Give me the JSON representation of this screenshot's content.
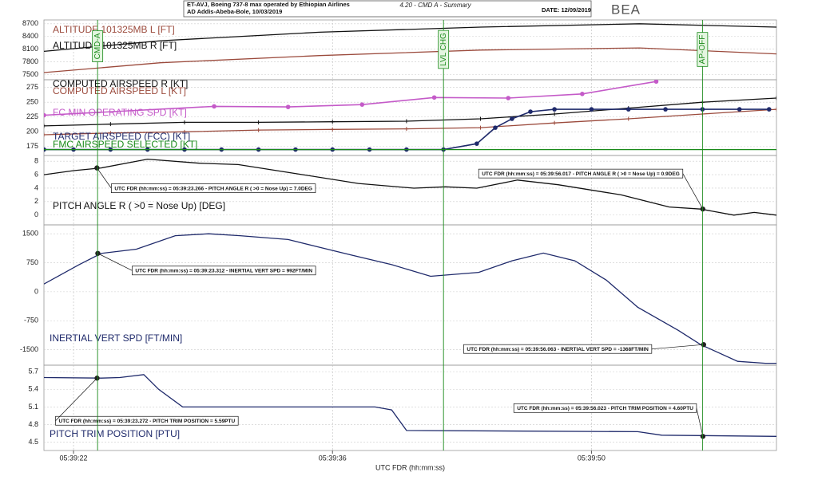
{
  "header": {
    "line1": "ET-AVJ, Boeing 737-8 max operated by Ethiopian Airlines",
    "line2": "AD Addis-Abeba-Bole, 10/03/2019",
    "title": "4.20 - CMD A - Summary",
    "date": "DATE: 12/09/2019",
    "logo": "BEA"
  },
  "events": [
    {
      "x": 23.3,
      "label": "CMD-A",
      "color": "#1a8a1a"
    },
    {
      "x": 42.0,
      "label": "LVL CHG",
      "color": "#1a8a1a"
    },
    {
      "x": 56.0,
      "label": "AP-OFF",
      "color": "#1a8a1a"
    }
  ],
  "chart_data": [
    {
      "type": "line",
      "xlim": [
        20.4,
        60
      ],
      "xticks": [
        {
          "value": 22,
          "label": "05:39:22"
        },
        {
          "value": 36,
          "label": "05:39:36"
        },
        {
          "value": 50,
          "label": "05:39:50"
        }
      ],
      "ylim": [
        7380,
        8790
      ],
      "yticks": [
        7500,
        7800,
        8100,
        8400,
        8700
      ],
      "grid": true,
      "series": [
        {
          "name": "ALTITUDE 101325MB L [FT]",
          "color": "#9b4a3c",
          "x": [
            20.4,
            26.7,
            35.3,
            44.0,
            52.6,
            60.0
          ],
          "values": [
            7550,
            7780,
            7950,
            8080,
            8130,
            7990
          ]
        },
        {
          "name": "ALTITUDE 101325MB R [FT]",
          "color": "#111111",
          "x": [
            20.4,
            26.7,
            35.3,
            44.0,
            52.6,
            60.0
          ],
          "values": [
            8050,
            8300,
            8500,
            8620,
            8700,
            8620
          ]
        }
      ]
    },
    {
      "type": "line",
      "xlim": [
        20.4,
        60
      ],
      "xticks": [
        {
          "value": 22,
          "label": "05:39:22"
        },
        {
          "value": 36,
          "label": "05:39:36"
        },
        {
          "value": 50,
          "label": "05:39:50"
        }
      ],
      "ylim": [
        160,
        288
      ],
      "yticks": [
        175,
        200,
        225,
        250,
        275
      ],
      "grid": true,
      "series": [
        {
          "name": "COMPUTED AIRSPEED R [KT]",
          "color": "#111111",
          "marker": "plus",
          "x": [
            20.4,
            24,
            28,
            32,
            36,
            40,
            44,
            48,
            52,
            56,
            60
          ],
          "values": [
            210,
            213,
            216,
            216,
            217,
            218,
            222,
            230,
            240,
            250,
            257
          ]
        },
        {
          "name": "COMPUTED AIRSPEED L [KT]",
          "color": "#9b4a3c",
          "marker": "plus",
          "x": [
            20.4,
            24,
            28,
            32,
            36,
            40,
            44,
            48,
            52,
            56,
            60
          ],
          "values": [
            195,
            198,
            200,
            203,
            204,
            205,
            207,
            215,
            222,
            230,
            238
          ]
        },
        {
          "name": "FC MIN OPERATING SPD [KT]",
          "color": "#c45ac8",
          "marker": "dot",
          "x": [
            20.4,
            29.6,
            33.6,
            37.6,
            41.5,
            45.5,
            49.5,
            53.5
          ],
          "values": [
            228,
            243,
            242,
            246,
            258,
            257,
            264,
            285
          ]
        },
        {
          "name": "TARGET AIRSPEED (FCC) [KT]",
          "color": "#1f2a6b",
          "marker": "dot",
          "x": [
            20.4,
            22,
            24,
            26,
            28,
            30,
            32,
            34,
            36,
            38,
            40,
            42,
            43.8,
            44.8,
            45.7,
            46.7,
            48,
            50,
            52,
            54,
            56,
            58,
            59.6
          ],
          "values": [
            170,
            170,
            170,
            170,
            170,
            170,
            170,
            170,
            170,
            170,
            170,
            170,
            180,
            207,
            222,
            234,
            238,
            238,
            238,
            238,
            238,
            238,
            238
          ]
        },
        {
          "name": "FMC AIRSPEED SELECTED [KT]",
          "color": "#1a8a1a",
          "x": [
            20.4,
            60
          ],
          "values": [
            170,
            170
          ]
        }
      ]
    },
    {
      "type": "line",
      "xlim": [
        20.4,
        60
      ],
      "xticks": [
        {
          "value": 22,
          "label": "05:39:22"
        },
        {
          "value": 36,
          "label": "05:39:36"
        },
        {
          "value": 50,
          "label": "05:39:50"
        }
      ],
      "ylim": [
        -1.45,
        8.85
      ],
      "yticks": [
        0,
        2,
        4,
        6,
        8
      ],
      "grid": true,
      "series": [
        {
          "name": "PITCH ANGLE R ( >0 = Nose Up) [DEG]",
          "color": "#111111",
          "x": [
            20.4,
            22.0,
            23.5,
            26.0,
            28.8,
            30.9,
            34.4,
            37.4,
            40.4,
            42.1,
            43.8,
            46.0,
            48.2,
            51.6,
            54.2,
            55.9,
            57.7,
            58.8,
            60.0
          ],
          "values": [
            6.0,
            6.6,
            7.0,
            8.3,
            7.7,
            7.5,
            6.0,
            4.7,
            4.0,
            4.2,
            4.0,
            5.2,
            4.5,
            3.0,
            1.2,
            0.9,
            0.0,
            0.4,
            0.0
          ]
        }
      ],
      "annotations": [
        {
          "x": 23.266,
          "y": 7.0,
          "text": "UTC FDR (hh:mm:ss) = 05:39:23.266  - PITCH ANGLE R ( >0 = Nose Up) =  7.0DEG"
        },
        {
          "x": 56.017,
          "y": 0.9,
          "text": "UTC FDR (hh:mm:ss) = 05:39:56.017  - PITCH ANGLE R ( >0 = Nose Up) =  0.9DEG"
        }
      ]
    },
    {
      "type": "line",
      "xlim": [
        20.4,
        60
      ],
      "xticks": [
        {
          "value": 22,
          "label": "05:39:22"
        },
        {
          "value": 36,
          "label": "05:39:36"
        },
        {
          "value": 50,
          "label": "05:39:50"
        }
      ],
      "ylim": [
        -1900,
        1730
      ],
      "yticks": [
        -1500,
        -750,
        0,
        750,
        1500
      ],
      "grid": true,
      "series": [
        {
          "name": "INERTIAL VERT SPD [FT/MIN]",
          "color": "#1f2a6b",
          "x": [
            20.4,
            22.3,
            23.5,
            25.4,
            27.5,
            29.3,
            31.0,
            33.6,
            35.3,
            37.0,
            39.2,
            41.3,
            43.9,
            45.7,
            47.4,
            49.1,
            50.8,
            52.5,
            54.7,
            55.9,
            57.9,
            59.4,
            60.0
          ],
          "values": [
            200,
            700,
            992,
            1100,
            1450,
            1500,
            1450,
            1350,
            1150,
            950,
            700,
            400,
            500,
            800,
            1000,
            800,
            300,
            -400,
            -1000,
            -1368,
            -1800,
            -1850,
            -1850
          ]
        }
      ],
      "annotations": [
        {
          "x": 23.312,
          "y": 992,
          "text": "UTC FDR (hh:mm:ss) = 05:39:23.312  - INERTIAL VERT SPD =  992FT/MIN"
        },
        {
          "x": 56.063,
          "y": -1368,
          "text": "UTC FDR (hh:mm:ss) = 05:39:56.063  - INERTIAL VERT SPD = -1368FT/MIN"
        }
      ]
    },
    {
      "type": "line",
      "xlim": [
        20.4,
        60
      ],
      "xticks": [
        {
          "value": 22,
          "label": "05:39:22"
        },
        {
          "value": 36,
          "label": "05:39:36"
        },
        {
          "value": 50,
          "label": "05:39:50"
        }
      ],
      "xlabel": "UTC FDR (hh:mm:ss)",
      "ylim": [
        4.36,
        5.81
      ],
      "yticks": [
        4.5,
        4.8,
        5.1,
        5.4,
        5.7
      ],
      "grid": true,
      "series": [
        {
          "name": "PITCH TRIM POSITION [PTU]",
          "color": "#1f2a6b",
          "x": [
            20.4,
            23.5,
            24.5,
            25.8,
            26.6,
            27.9,
            38.3,
            39.2,
            40.0,
            52.5,
            53.8,
            60.0
          ],
          "values": [
            5.6,
            5.59,
            5.6,
            5.65,
            5.4,
            5.1,
            5.1,
            5.05,
            4.7,
            4.68,
            4.62,
            4.6
          ]
        }
      ],
      "annotations": [
        {
          "x": 23.272,
          "y": 5.59,
          "text": "UTC FDR (hh:mm:ss) = 05:39:23.272  - PITCH TRIM POSITION =  5.59PTU"
        },
        {
          "x": 56.023,
          "y": 4.6,
          "text": "UTC FDR (hh:mm:ss) = 05:39:56.023  - PITCH TRIM POSITION =  4.60PTU"
        }
      ]
    }
  ]
}
